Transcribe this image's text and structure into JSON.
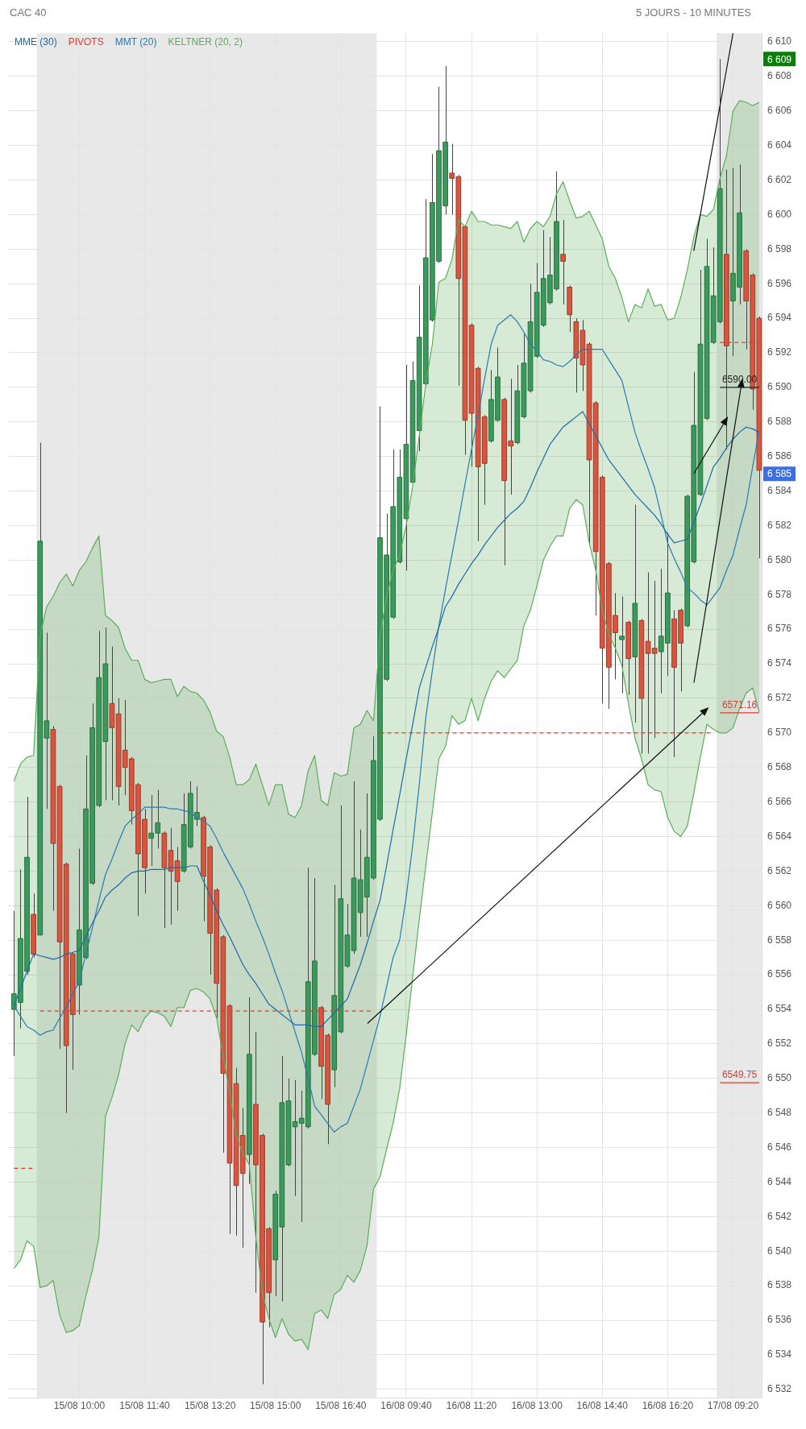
{
  "chart_data": {
    "type": "candlestick",
    "title": "CAC 40",
    "subtitle": "5 JOURS - 10 MINUTES",
    "categories": [
      null,
      null,
      null,
      null,
      null,
      null,
      null,
      null,
      null,
      null,
      "15/08 10:00",
      null,
      null,
      null,
      null,
      null,
      null,
      null,
      null,
      null,
      "15/08 11:40",
      null,
      null,
      null,
      null,
      null,
      null,
      null,
      null,
      null,
      "15/08 13:20",
      null,
      null,
      null,
      null,
      null,
      null,
      null,
      null,
      null,
      "15/08 15:00",
      null,
      null,
      null,
      null,
      null,
      null,
      null,
      null,
      null,
      "15/08 16:40",
      null,
      null,
      null,
      null,
      null,
      null,
      null,
      null,
      null,
      "16/08 09:40",
      null,
      null,
      null,
      null,
      null,
      null,
      null,
      null,
      null,
      "16/08 11:20",
      null,
      null,
      null,
      null,
      null,
      null,
      null,
      null,
      null,
      "16/08 13:00",
      null,
      null,
      null,
      null,
      null,
      null,
      null,
      null,
      null,
      "16/08 14:40",
      null,
      null,
      null,
      null,
      null,
      null,
      null,
      null,
      null,
      "16/08 16:20",
      null,
      null,
      null,
      null,
      null,
      null,
      null,
      null,
      null,
      "17/08 09:20",
      null,
      null,
      null,
      null
    ],
    "ohlc": [
      [
        6554.0,
        6559.7,
        6551.3,
        6554.9
      ],
      [
        6554.4,
        6562.1,
        6552.9,
        6558.1
      ],
      [
        6556.2,
        6566.3,
        6556.0,
        6562.8
      ],
      [
        6559.5,
        6560.7,
        6557.0,
        6557.2
      ],
      [
        6558.3,
        6586.8,
        6558.3,
        6581.1
      ],
      [
        6569.7,
        6575.8,
        6565.6,
        6570.7
      ],
      [
        6570.2,
        6570.4,
        6559.7,
        6563.6
      ],
      [
        6566.9,
        6567.0,
        6551.7,
        6557.9
      ],
      [
        6562.4,
        6562.5,
        6548.0,
        6551.9
      ],
      [
        6557.2,
        6557.3,
        6550.5,
        6553.7
      ],
      [
        6555.4,
        6563.3,
        6553.7,
        6558.6
      ],
      [
        6557.0,
        6568.7,
        6556.9,
        6565.6
      ],
      [
        6561.3,
        6571.7,
        6561.2,
        6570.3
      ],
      [
        6565.8,
        6575.9,
        6565.7,
        6573.2
      ],
      [
        6569.5,
        6576.1,
        6566.1,
        6574.0
      ],
      [
        6571.7,
        6575.0,
        6566.1,
        6570.3
      ],
      [
        6571.1,
        6572.0,
        6565.8,
        6566.9
      ],
      [
        6569.0,
        6571.9,
        6566.4,
        6568.0
      ],
      [
        6568.5,
        6568.6,
        6564.7,
        6565.5
      ],
      [
        6567.0,
        6567.1,
        6559.4,
        6563.0
      ],
      [
        6565.0,
        6565.6,
        6560.7,
        6562.2
      ],
      [
        6563.9,
        6566.4,
        6562.3,
        6564.2
      ],
      [
        6564.2,
        6566.7,
        6563.3,
        6564.8
      ],
      [
        6564.2,
        6564.3,
        6558.7,
        6562.2
      ],
      [
        6563.2,
        6564.5,
        6558.9,
        6562.0
      ],
      [
        6562.6,
        6563.4,
        6559.7,
        6561.4
      ],
      [
        6562.0,
        6566.5,
        6561.9,
        6564.7
      ],
      [
        6563.4,
        6567.2,
        6563.3,
        6566.5
      ],
      [
        6565.0,
        6566.9,
        6564.6,
        6565.4
      ],
      [
        6565.1,
        6565.2,
        6559.1,
        6561.7
      ],
      [
        6563.4,
        6563.5,
        6556.0,
        6558.4
      ],
      [
        6560.9,
        6561.0,
        6553.5,
        6555.5
      ],
      [
        6558.2,
        6558.3,
        6545.7,
        6550.3
      ],
      [
        6554.2,
        6554.3,
        6541.0,
        6545.1
      ],
      [
        6549.7,
        6550.6,
        6540.9,
        6543.8
      ],
      [
        6546.7,
        6548.3,
        6540.2,
        6544.5
      ],
      [
        6545.6,
        6554.7,
        6543.9,
        6551.4
      ],
      [
        6548.5,
        6552.7,
        6537.6,
        6545.0
      ],
      [
        6546.7,
        6546.8,
        6532.3,
        6535.9
      ],
      [
        6541.3,
        6541.4,
        6535.6,
        6537.6
      ],
      [
        6539.5,
        6543.5,
        6537.4,
        6543.3
      ],
      [
        6541.4,
        6551.3,
        6537.1,
        6548.6
      ],
      [
        6545.0,
        6550.0,
        6544.9,
        6548.7
      ],
      [
        6547.2,
        6549.9,
        6543.2,
        6547.5
      ],
      [
        6547.4,
        6549.3,
        6541.7,
        6547.7
      ],
      [
        6547.2,
        6562.2,
        6547.1,
        6555.6
      ],
      [
        6551.4,
        6561.6,
        6551.3,
        6556.8
      ],
      [
        6554.1,
        6554.2,
        6548.8,
        6550.7
      ],
      [
        6552.5,
        6552.6,
        6546.2,
        6548.5
      ],
      [
        6550.5,
        6561.2,
        6549.5,
        6554.8
      ],
      [
        6552.7,
        6565.8,
        6552.6,
        6560.4
      ],
      [
        6556.5,
        6560.1,
        6556.4,
        6558.3
      ],
      [
        6557.4,
        6567.2,
        6557.2,
        6561.6
      ],
      [
        6559.6,
        6564.4,
        6558.2,
        6561.5
      ],
      [
        6560.5,
        6566.5,
        6558.2,
        6562.8
      ],
      [
        6561.6,
        6569.8,
        6561.5,
        6568.4
      ],
      [
        6565.0,
        6588.9,
        6564.9,
        6581.3
      ],
      [
        6573.1,
        6582.7,
        6573.0,
        6580.3
      ],
      [
        6576.7,
        6586.4,
        6576.6,
        6583.1
      ],
      [
        6579.9,
        6586.4,
        6579.8,
        6584.8
      ],
      [
        6582.4,
        6591.3,
        6579.4,
        6586.7
      ],
      [
        6584.5,
        6591.5,
        6584.4,
        6590.4
      ],
      [
        6587.5,
        6595.9,
        6586.3,
        6592.9
      ],
      [
        6590.2,
        6600.9,
        6590.1,
        6597.5
      ],
      [
        6593.9,
        6603.5,
        6593.8,
        6600.7
      ],
      [
        6597.3,
        6607.4,
        6597.2,
        6603.7
      ],
      [
        6600.5,
        6608.6,
        6600.0,
        6604.2
      ],
      [
        6602.4,
        6604.1,
        6600.0,
        6602.1
      ],
      [
        6602.2,
        6602.3,
        6590.1,
        6596.3
      ],
      [
        6599.3,
        6599.4,
        6586.1,
        6588.1
      ],
      [
        6593.6,
        6593.7,
        6585.4,
        6588.5
      ],
      [
        6591.1,
        6591.2,
        6581.1,
        6585.4
      ],
      [
        6588.3,
        6588.4,
        6583.2,
        6585.6
      ],
      [
        6586.9,
        6591.0,
        6586.8,
        6589.3
      ],
      [
        6588.1,
        6592.3,
        6588.0,
        6590.6
      ],
      [
        6589.3,
        6589.4,
        6579.7,
        6584.6
      ],
      [
        6586.9,
        6590.5,
        6583.8,
        6586.6
      ],
      [
        6586.8,
        6591.3,
        6586.7,
        6589.8
      ],
      [
        6588.3,
        6593.1,
        6588.2,
        6591.4
      ],
      [
        6589.8,
        6596.0,
        6589.7,
        6593.8
      ],
      [
        6591.8,
        6597.2,
        6591.7,
        6595.5
      ],
      [
        6593.6,
        6599.1,
        6593.5,
        6596.3
      ],
      [
        6594.9,
        6598.7,
        6594.8,
        6596.5
      ],
      [
        6595.7,
        6602.5,
        6595.6,
        6599.6
      ],
      [
        6597.7,
        6599.7,
        6594.8,
        6597.3
      ],
      [
        6595.8,
        6595.9,
        6593.2,
        6594.2
      ],
      [
        6593.8,
        6594.0,
        6589.7,
        6591.7
      ],
      [
        6593.3,
        6593.9,
        6589.8,
        6591.3
      ],
      [
        6592.5,
        6592.6,
        6581.0,
        6585.8
      ],
      [
        6589.1,
        6589.2,
        6576.8,
        6580.5
      ],
      [
        6584.8,
        6584.9,
        6571.7,
        6574.9
      ],
      [
        6579.8,
        6579.9,
        6571.4,
        6573.8
      ],
      [
        6576.8,
        6578.1,
        6573.1,
        6575.8
      ],
      [
        6575.4,
        6577.9,
        6572.3,
        6575.6
      ],
      [
        6576.4,
        6576.5,
        6572.2,
        6574.3
      ],
      [
        6574.4,
        6583.2,
        6570.6,
        6577.5
      ],
      [
        6576.5,
        6576.6,
        6568.8,
        6572.0
      ],
      [
        6575.3,
        6579.3,
        6568.8,
        6574.6
      ],
      [
        6574.9,
        6578.8,
        6569.7,
        6574.6
      ],
      [
        6574.7,
        6579.5,
        6572.3,
        6575.6
      ],
      [
        6575.2,
        6581.6,
        6573.3,
        6578.1
      ],
      [
        6576.6,
        6577.1,
        6568.6,
        6573.8
      ],
      [
        6577.1,
        6577.2,
        6572.4,
        6575.2
      ],
      [
        6576.2,
        6583.8,
        6576.1,
        6583.7
      ],
      [
        6579.9,
        6590.9,
        6579.8,
        6587.8
      ],
      [
        6583.8,
        6596.8,
        6583.7,
        6592.5
      ],
      [
        6588.2,
        6598.6,
        6588.1,
        6597.0
      ],
      [
        6592.6,
        6598.1,
        6592.5,
        6595.3
      ],
      [
        6593.8,
        6609.0,
        6593.7,
        6601.5
      ],
      [
        6597.7,
        6602.6,
        6586.4,
        6592.4
      ],
      [
        6595.0,
        6602.7,
        6591.8,
        6596.6
      ],
      [
        6595.8,
        6602.9,
        6594.8,
        6600.1
      ],
      [
        6597.9,
        6598.0,
        6592.2,
        6595.0
      ],
      [
        6596.5,
        6596.6,
        6588.7,
        6589.9
      ],
      [
        6594.0,
        6594.1,
        6580.1,
        6585.2
      ]
    ],
    "series": [
      {
        "name": "MME (30)",
        "type": "line",
        "color": "#1f6aa5",
        "values": [
          6554.2,
          6555.2,
          6556.2,
          6557.2,
          6557.1,
          6557.0,
          6556.9,
          6557.0,
          6557.2,
          6557.3,
          6557.4,
          6558.2,
          6559.0,
          6559.7,
          6560.5,
          6560.9,
          6561.2,
          6561.6,
          6561.9,
          6562.0,
          6562.0,
          6562.1,
          6562.1,
          6562.1,
          6562.2,
          6562.2,
          6562.2,
          6562.3,
          6562.3,
          6561.4,
          6560.6,
          6559.7,
          6558.9,
          6558.2,
          6557.4,
          6556.6,
          6556.0,
          6555.5,
          6554.9,
          6554.3,
          6554.0,
          6553.7,
          6553.4,
          6553.1,
          6553.1,
          6553.1,
          6553.0,
          6553.0,
          6553.4,
          6553.8,
          6554.2,
          6554.6,
          6555.6,
          6556.6,
          6557.8,
          6559.1,
          6560.3,
          6562.3,
          6564.4,
          6566.4,
          6568.5,
          6570.5,
          6572.6,
          6573.8,
          6575.0,
          6576.1,
          6577.3,
          6577.9,
          6578.6,
          6579.2,
          6579.8,
          6580.3,
          6580.9,
          6581.4,
          6581.9,
          6582.3,
          6582.7,
          6583.0,
          6583.4,
          6584.2,
          6585.1,
          6585.9,
          6586.7,
          6587.2,
          6587.7,
          6588.0,
          6588.3,
          6588.6,
          6587.9,
          6587.2,
          6586.5,
          6585.8,
          6585.3,
          6584.8,
          6584.3,
          6583.8,
          6583.4,
          6583.0,
          6582.6,
          6582.1,
          6581.5,
          6581.0,
          6581.1,
          6581.2,
          6582.2,
          6583.2,
          6584.3,
          6585.4,
          6585.9,
          6586.5,
          6587.0,
          6587.4,
          6587.7,
          6587.6,
          6587.4
        ]
      },
      {
        "name": "PIVOTS",
        "type": "step",
        "color": "#e53935",
        "line_style": "dashed",
        "values": [
          6544.8,
          6544.8,
          6544.8,
          6544.8,
          6553.9,
          6553.9,
          6553.9,
          6553.9,
          6553.9,
          6553.9,
          6553.9,
          6553.9,
          6553.9,
          6553.9,
          6553.9,
          6553.9,
          6553.9,
          6553.9,
          6553.9,
          6553.9,
          6553.9,
          6553.9,
          6553.9,
          6553.9,
          6553.9,
          6553.9,
          6553.9,
          6553.9,
          6553.9,
          6553.9,
          6553.9,
          6553.9,
          6553.9,
          6553.9,
          6553.9,
          6553.9,
          6553.9,
          6553.9,
          6553.9,
          6553.9,
          6553.9,
          6553.9,
          6553.9,
          6553.9,
          6553.9,
          6553.9,
          6553.9,
          6553.9,
          6553.9,
          6553.9,
          6553.9,
          6553.9,
          6553.9,
          6553.9,
          6553.9,
          6553.9,
          6570.0,
          6570.0,
          6570.0,
          6570.0,
          6570.0,
          6570.0,
          6570.0,
          6570.0,
          6570.0,
          6570.0,
          6570.0,
          6570.0,
          6570.0,
          6570.0,
          6570.0,
          6570.0,
          6570.0,
          6570.0,
          6570.0,
          6570.0,
          6570.0,
          6570.0,
          6570.0,
          6570.0,
          6570.0,
          6570.0,
          6570.0,
          6570.0,
          6570.0,
          6570.0,
          6570.0,
          6570.0,
          6570.0,
          6570.0,
          6570.0,
          6570.0,
          6570.0,
          6570.0,
          6570.0,
          6570.0,
          6570.0,
          6570.0,
          6570.0,
          6570.0,
          6570.0,
          6570.0,
          6570.0,
          6570.0,
          6570.0,
          6570.0,
          6570.0,
          6570.0,
          6592.6,
          6592.6,
          6592.6,
          6592.6,
          6592.6,
          6592.6,
          6592.6
        ]
      },
      {
        "name": "MMT (20)",
        "type": "line",
        "color": "#2a7ab0",
        "values": [
          6554.2,
          6553.6,
          6553.0,
          6552.8,
          6552.5,
          6552.7,
          6552.8,
          6553.5,
          6554.1,
          6554.9,
          6555.6,
          6557.2,
          6558.7,
          6560.3,
          6561.8,
          6562.7,
          6563.7,
          6564.6,
          6565.0,
          6565.3,
          6565.7,
          6565.7,
          6565.7,
          6565.7,
          6565.6,
          6565.6,
          6565.5,
          6565.4,
          6565.1,
          6564.9,
          6564.6,
          6563.9,
          6563.1,
          6562.4,
          6561.7,
          6561.0,
          6560.1,
          6559.1,
          6558.2,
          6557.2,
          6556.1,
          6555.1,
          6553.9,
          6552.7,
          6551.5,
          6550.0,
          6548.4,
          6547.9,
          6547.4,
          6546.9,
          6547.2,
          6547.4,
          6548.4,
          6549.4,
          6550.8,
          6552.2,
          6553.6,
          6555.3,
          6557.0,
          6558.0,
          6560.5,
          6563.5,
          6567.0,
          6570.9,
          6573.6,
          6576.2,
          6578.3,
          6580.3,
          6582.3,
          6584.4,
          6586.4,
          6588.4,
          6590.5,
          6592.5,
          6593.6,
          6593.9,
          6594.2,
          6593.8,
          6593.2,
          6592.5,
          6592.1,
          6591.6,
          6591.5,
          6591.3,
          6591.2,
          6591.5,
          6591.9,
          6592.2,
          6592.2,
          6592.2,
          6592.2,
          6591.6,
          6591.0,
          6590.4,
          6588.9,
          6587.4,
          6586.3,
          6585.3,
          6584.2,
          6582.6,
          6581.0,
          6580.1,
          6579.3,
          6578.4,
          6578.1,
          6577.7,
          6577.4,
          6577.9,
          6578.4,
          6579.4,
          6580.3,
          6581.8,
          6583.2,
          6585.4,
          6587.5
        ]
      },
      {
        "name": "KELTNER (20, 2)",
        "type": "area",
        "color": "#5cad5c",
        "values": [
          6567.2,
          6568.2,
          6568.6,
          6568.7,
          6575.6,
          6577.3,
          6577.9,
          6578.7,
          6579.2,
          6578.5,
          6579.4,
          6579.9,
          6580.7,
          6581.4,
          6576.8,
          6576.5,
          6576.1,
          6574.9,
          6574.2,
          6574.2,
          6573.1,
          6572.9,
          6573.0,
          6573.1,
          6573.1,
          6572.1,
          6572.7,
          6572.4,
          6572.3,
          6571.9,
          6571.2,
          6570.1,
          6569.8,
          6568.6,
          6567.0,
          6567.0,
          6567.3,
          6568.2,
          6567.0,
          6565.8,
          6567.0,
          6567.0,
          6565.3,
          6565.1,
          6565.8,
          6567.8,
          6568.7,
          6566.1,
          6565.8,
          6567.7,
          6567.5,
          6567.6,
          6570.3,
          6570.5,
          6571.3,
          6570.7,
          6575.6,
          6577.9,
          6579.4,
          6580.3,
          6582.0,
          6584.3,
          6587.2,
          6590.2,
          6592.5,
          6596.1,
          6596.3,
          6597.4,
          6599.7,
          6599.3,
          6600.2,
          6599.6,
          6599.6,
          6599.4,
          6599.4,
          6599.3,
          6599.2,
          6599.6,
          6598.4,
          6599.2,
          6599.6,
          6599.3,
          6599.9,
          6601.2,
          6601.9,
          6600.8,
          6599.8,
          6599.9,
          6600.2,
          6599.4,
          6598.6,
          6597.0,
          6596.3,
          6595.2,
          6593.8,
          6594.8,
          6594.6,
          6595.7,
          6594.7,
          6594.8,
          6593.9,
          6594.0,
          6595.2,
          6596.8,
          6598.7,
          6600.0,
          6599.9,
          6600.3,
          6602.1,
          6603.4,
          6606.0,
          6606.6,
          6606.5,
          6606.3,
          6606.5
        ]
      },
      {
        "type": "line",
        "color": "#5cad5c",
        "values": [
          6539.0,
          6539.5,
          6540.6,
          6540.3,
          6537.9,
          6538.0,
          6538.3,
          6536.3,
          6535.3,
          6535.4,
          6535.7,
          6537.4,
          6538.9,
          6540.8,
          6547.8,
          6548.9,
          6550.2,
          6552.0,
          6553.1,
          6552.7,
          6553.5,
          6553.9,
          6553.8,
          6553.6,
          6553.0,
          6554.1,
          6554.1,
          6555.1,
          6555.2,
          6555.0,
          6554.6,
          6553.5,
          6551.3,
          6549.2,
          6546.7,
          6545.7,
          6545.0,
          6540.8,
          6537.6,
          6536.1,
          6535.0,
          6536.1,
          6535.2,
          6534.8,
          6534.9,
          6534.3,
          6536.4,
          6536.6,
          6536.1,
          6537.5,
          6537.8,
          6538.6,
          6538.2,
          6538.9,
          6540.3,
          6543.6,
          6544.3,
          6545.9,
          6547.4,
          6549.4,
          6552.5,
          6555.9,
          6559.2,
          6562.3,
          6565.4,
          6568.5,
          6569.2,
          6571.0,
          6570.5,
          6570.7,
          6572.0,
          6570.7,
          6572.0,
          6573.0,
          6573.6,
          6573.2,
          6573.7,
          6574.2,
          6576.2,
          6577.1,
          6578.5,
          6580.0,
          6580.8,
          6581.4,
          6581.4,
          6583.0,
          6583.5,
          6583.2,
          6581.0,
          6579.4,
          6577.1,
          6575.7,
          6574.9,
          6573.9,
          6571.7,
          6569.7,
          6568.5,
          6567.0,
          6566.7,
          6566.6,
          6565.1,
          6564.3,
          6564.0,
          6564.6,
          6566.5,
          6568.6,
          6570.5,
          6570.2,
          6570.0,
          6570.0,
          6570.3,
          6571.4,
          6572.3,
          6572.6,
          6571.2
        ]
      },
      {
        "type": "line",
        "color": "#222222",
        "values": [
          null,
          null,
          null,
          null,
          null,
          null,
          null,
          null,
          null,
          null,
          null,
          null,
          null,
          null,
          null,
          null,
          null,
          null,
          null,
          null,
          null,
          null,
          null,
          null,
          null,
          null,
          null,
          null,
          null,
          null,
          null,
          null,
          null,
          null,
          null,
          null,
          null,
          null,
          null,
          null,
          null,
          null,
          null,
          null,
          null,
          null,
          null,
          null,
          null,
          null,
          null,
          null,
          null,
          null,
          null,
          null,
          null,
          null,
          null,
          null,
          null,
          null,
          null,
          null,
          null,
          null,
          null,
          null,
          null,
          null,
          null,
          null,
          null,
          null,
          null,
          null,
          null,
          null,
          null,
          null,
          null,
          null,
          null,
          null,
          null,
          null,
          null,
          null,
          null,
          null,
          null,
          null,
          null,
          null,
          null,
          null,
          null,
          null,
          null,
          null,
          null,
          null,
          null,
          null,
          null,
          null,
          null,
          null,
          6590.0,
          6590.0,
          6590.0,
          6590.0,
          6590.0,
          6590.0,
          6590.0
        ]
      },
      {
        "type": "line",
        "color": "#e53935",
        "values": [
          null,
          null,
          null,
          null,
          null,
          null,
          null,
          null,
          null,
          null,
          null,
          null,
          null,
          null,
          null,
          null,
          null,
          null,
          null,
          null,
          null,
          null,
          null,
          null,
          null,
          null,
          null,
          null,
          null,
          null,
          null,
          null,
          null,
          null,
          null,
          null,
          null,
          null,
          null,
          null,
          null,
          null,
          null,
          null,
          null,
          null,
          null,
          null,
          null,
          null,
          null,
          null,
          null,
          null,
          null,
          null,
          null,
          null,
          null,
          null,
          null,
          null,
          null,
          null,
          null,
          null,
          null,
          null,
          null,
          null,
          null,
          null,
          null,
          null,
          null,
          null,
          null,
          null,
          null,
          null,
          null,
          null,
          null,
          null,
          null,
          null,
          null,
          null,
          null,
          null,
          null,
          null,
          null,
          null,
          null,
          null,
          null,
          null,
          null,
          null,
          null,
          null,
          null,
          null,
          null,
          null,
          null,
          null,
          6571.16,
          6571.16,
          6571.16,
          6571.16,
          6571.16,
          6571.16,
          6571.16
        ]
      },
      {
        "type": "line",
        "color": "#e53935",
        "values": [
          null,
          null,
          null,
          null,
          null,
          null,
          null,
          null,
          null,
          null,
          null,
          null,
          null,
          null,
          null,
          null,
          null,
          null,
          null,
          null,
          null,
          null,
          null,
          null,
          null,
          null,
          null,
          null,
          null,
          null,
          null,
          null,
          null,
          null,
          null,
          null,
          null,
          null,
          null,
          null,
          null,
          null,
          null,
          null,
          null,
          null,
          null,
          null,
          null,
          null,
          null,
          null,
          null,
          null,
          null,
          null,
          null,
          null,
          null,
          null,
          null,
          null,
          null,
          null,
          null,
          null,
          null,
          null,
          null,
          null,
          null,
          null,
          null,
          null,
          null,
          null,
          null,
          null,
          null,
          null,
          null,
          null,
          null,
          null,
          null,
          null,
          null,
          null,
          null,
          null,
          null,
          null,
          null,
          null,
          null,
          null,
          null,
          null,
          null,
          null,
          null,
          null,
          null,
          null,
          null,
          null,
          null,
          null,
          6549.75,
          6549.75,
          6549.75,
          6549.75,
          6549.75,
          6549.75,
          6549.75
        ]
      },
      {
        "type": "line",
        "color": "#111111",
        "values": [
          null,
          null,
          null,
          null,
          null,
          null,
          null,
          null,
          null,
          null,
          null,
          null,
          null,
          null,
          null,
          null,
          null,
          null,
          null,
          null,
          null,
          null,
          null,
          null,
          null,
          null,
          null,
          null,
          null,
          null,
          null,
          null,
          null,
          null,
          null,
          null,
          null,
          null,
          null,
          null,
          null,
          null,
          null,
          null,
          null,
          null,
          null,
          null,
          null,
          null,
          null,
          null,
          null,
          null,
          null,
          null,
          null,
          null,
          null,
          null,
          null,
          null,
          null,
          null,
          null,
          null,
          null,
          null,
          null,
          null,
          null,
          null,
          null,
          null,
          null,
          null,
          null,
          null,
          null,
          null,
          null,
          null,
          null,
          null,
          null,
          null,
          null,
          null,
          null,
          null,
          null,
          null,
          null,
          null,
          null,
          null,
          null,
          null,
          null,
          null,
          null,
          null,
          null,
          null,
          6597.9,
          6600.0,
          6602.1,
          6604.2,
          6606.3,
          6608.4,
          6610.5,
          null,
          null,
          null,
          null
        ]
      }
    ],
    "annotations": [
      {
        "text": "6590.00",
        "y": 6590.0
      },
      {
        "text": "6571.16",
        "y": 6571.16
      },
      {
        "text": "6549.75",
        "y": 6549.75
      },
      {
        "text": "6 609",
        "y": 6609
      },
      {
        "text": "6 585",
        "y": 6585
      }
    ],
    "ylim": [
      6531.5,
      6610.5
    ],
    "yticks": [
      {
        "value": 6532,
        "label": "6 532"
      },
      {
        "value": 6534,
        "label": "6 534"
      },
      {
        "value": 6536,
        "label": "6 536"
      },
      {
        "value": 6538,
        "label": "6 538"
      },
      {
        "value": 6540,
        "label": "6 540"
      },
      {
        "value": 6542,
        "label": "6 542"
      },
      {
        "value": 6544,
        "label": "6 544"
      },
      {
        "value": 6546,
        "label": "6 546"
      },
      {
        "value": 6548,
        "label": "6 548"
      },
      {
        "value": 6550,
        "label": "6 550"
      },
      {
        "value": 6552,
        "label": "6 552"
      },
      {
        "value": 6554,
        "label": "6 554"
      },
      {
        "value": 6556,
        "label": "6 556"
      },
      {
        "value": 6558,
        "label": "6 558"
      },
      {
        "value": 6560,
        "label": "6 560"
      },
      {
        "value": 6562,
        "label": "6 562"
      },
      {
        "value": 6564,
        "label": "6 564"
      },
      {
        "value": 6566,
        "label": "6 566"
      },
      {
        "value": 6568,
        "label": "6 568"
      },
      {
        "value": 6570,
        "label": "6 570"
      },
      {
        "value": 6572,
        "label": "6 572"
      },
      {
        "value": 6574,
        "label": "6 574"
      },
      {
        "value": 6576,
        "label": "6 576"
      },
      {
        "value": 6578,
        "label": "6 578"
      },
      {
        "value": 6580,
        "label": "6 580"
      },
      {
        "value": 6582,
        "label": "6 582"
      },
      {
        "value": 6584,
        "label": "6 584"
      },
      {
        "value": 6586,
        "label": "6 586"
      },
      {
        "value": 6588,
        "label": "6 588"
      },
      {
        "value": 6590,
        "label": "6 590"
      },
      {
        "value": 6592,
        "label": "6 592"
      },
      {
        "value": 6594,
        "label": "6 594"
      },
      {
        "value": 6596,
        "label": "6 596"
      },
      {
        "value": 6598,
        "label": "6 598"
      },
      {
        "value": 6600,
        "label": "6 600"
      },
      {
        "value": 6602,
        "label": "6 602"
      },
      {
        "value": 6604,
        "label": "6 604"
      },
      {
        "value": 6606,
        "label": "6 606"
      },
      {
        "value": 6608,
        "label": "6 608"
      },
      {
        "value": 6610,
        "label": "6 610"
      }
    ],
    "grid": true,
    "legend": "top left"
  }
}
